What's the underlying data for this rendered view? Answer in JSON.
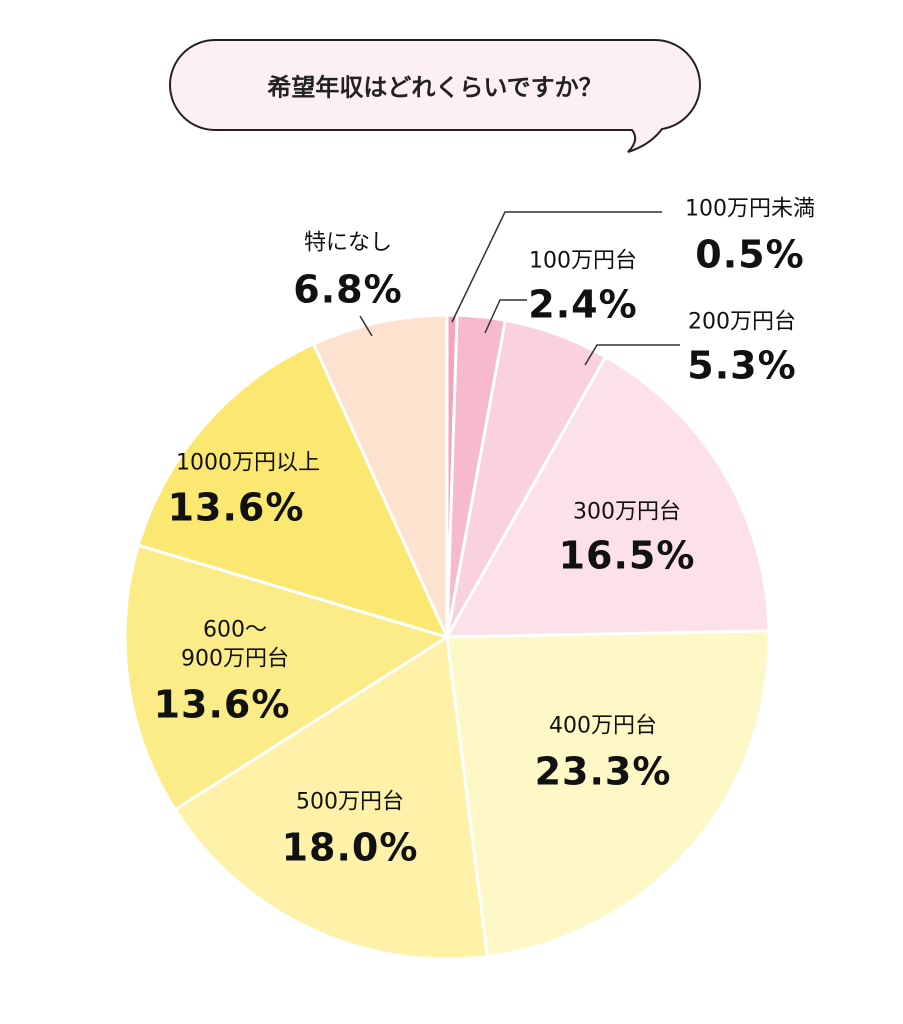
{
  "chart_data": {
    "type": "pie",
    "title": "希望年収はどれくらいですか？",
    "categories": [
      "100万円未満",
      "100万円台",
      "200万円台",
      "300万円台",
      "400万円台",
      "500万円台",
      "600～\n900万円台",
      "1000万円以上",
      "特になし"
    ],
    "values": [
      0.5,
      2.4,
      5.3,
      16.5,
      23.3,
      18.0,
      13.6,
      13.6,
      6.8
    ],
    "value_labels": [
      "0.5%",
      "2.4%",
      "5.3%",
      "16.5%",
      "23.3%",
      "18.0%",
      "13.6%",
      "13.6%",
      "6.8%"
    ],
    "colors": [
      "#f4a3bd",
      "#f7b9cd",
      "#fad1de",
      "#fde1e9",
      "#fef7c6",
      "#fdf2a8",
      "#fcec88",
      "#fbe870",
      "#fde3cf"
    ]
  }
}
